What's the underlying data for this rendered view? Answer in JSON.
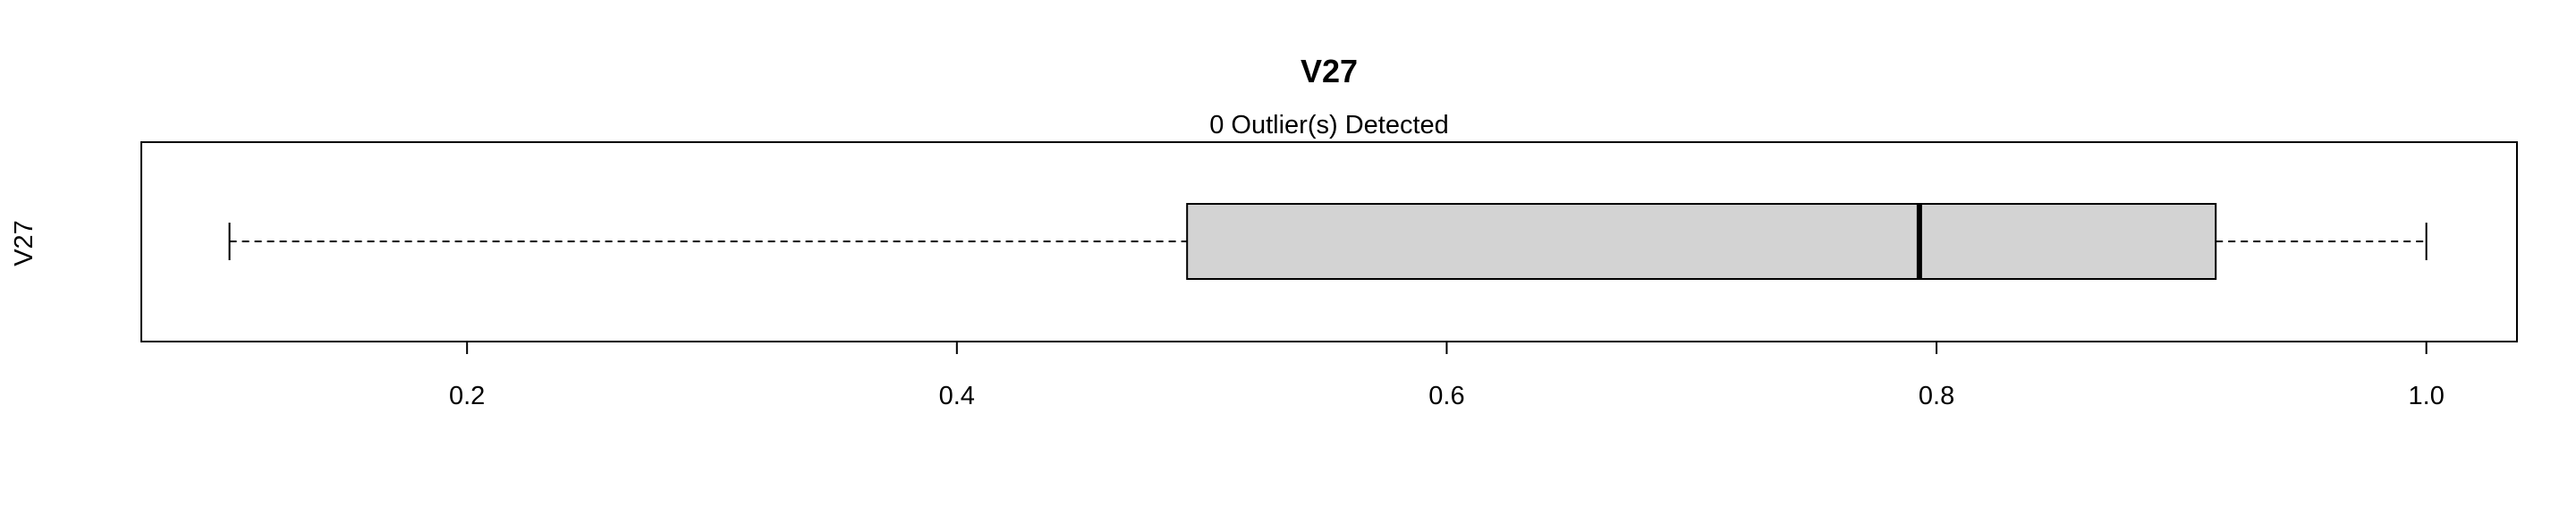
{
  "chart_data": {
    "type": "boxplot",
    "title": "V27",
    "subtitle": "0 Outlier(s) Detected",
    "ylabel": "V27",
    "xlabel": "",
    "orientation": "horizontal",
    "xlim": [
      0.067,
      1.037
    ],
    "xticks": [
      0.2,
      0.4,
      0.6,
      0.8,
      1.0
    ],
    "xtick_labels": [
      "0.2",
      "0.4",
      "0.6",
      "0.8",
      "1.0"
    ],
    "box": {
      "min": 0.103,
      "q1": 0.494,
      "median": 0.793,
      "q3": 0.914,
      "max": 1.0
    },
    "outliers": [],
    "box_fill": "#d3d3d3",
    "stroke_color": "#000000",
    "grid": false
  }
}
